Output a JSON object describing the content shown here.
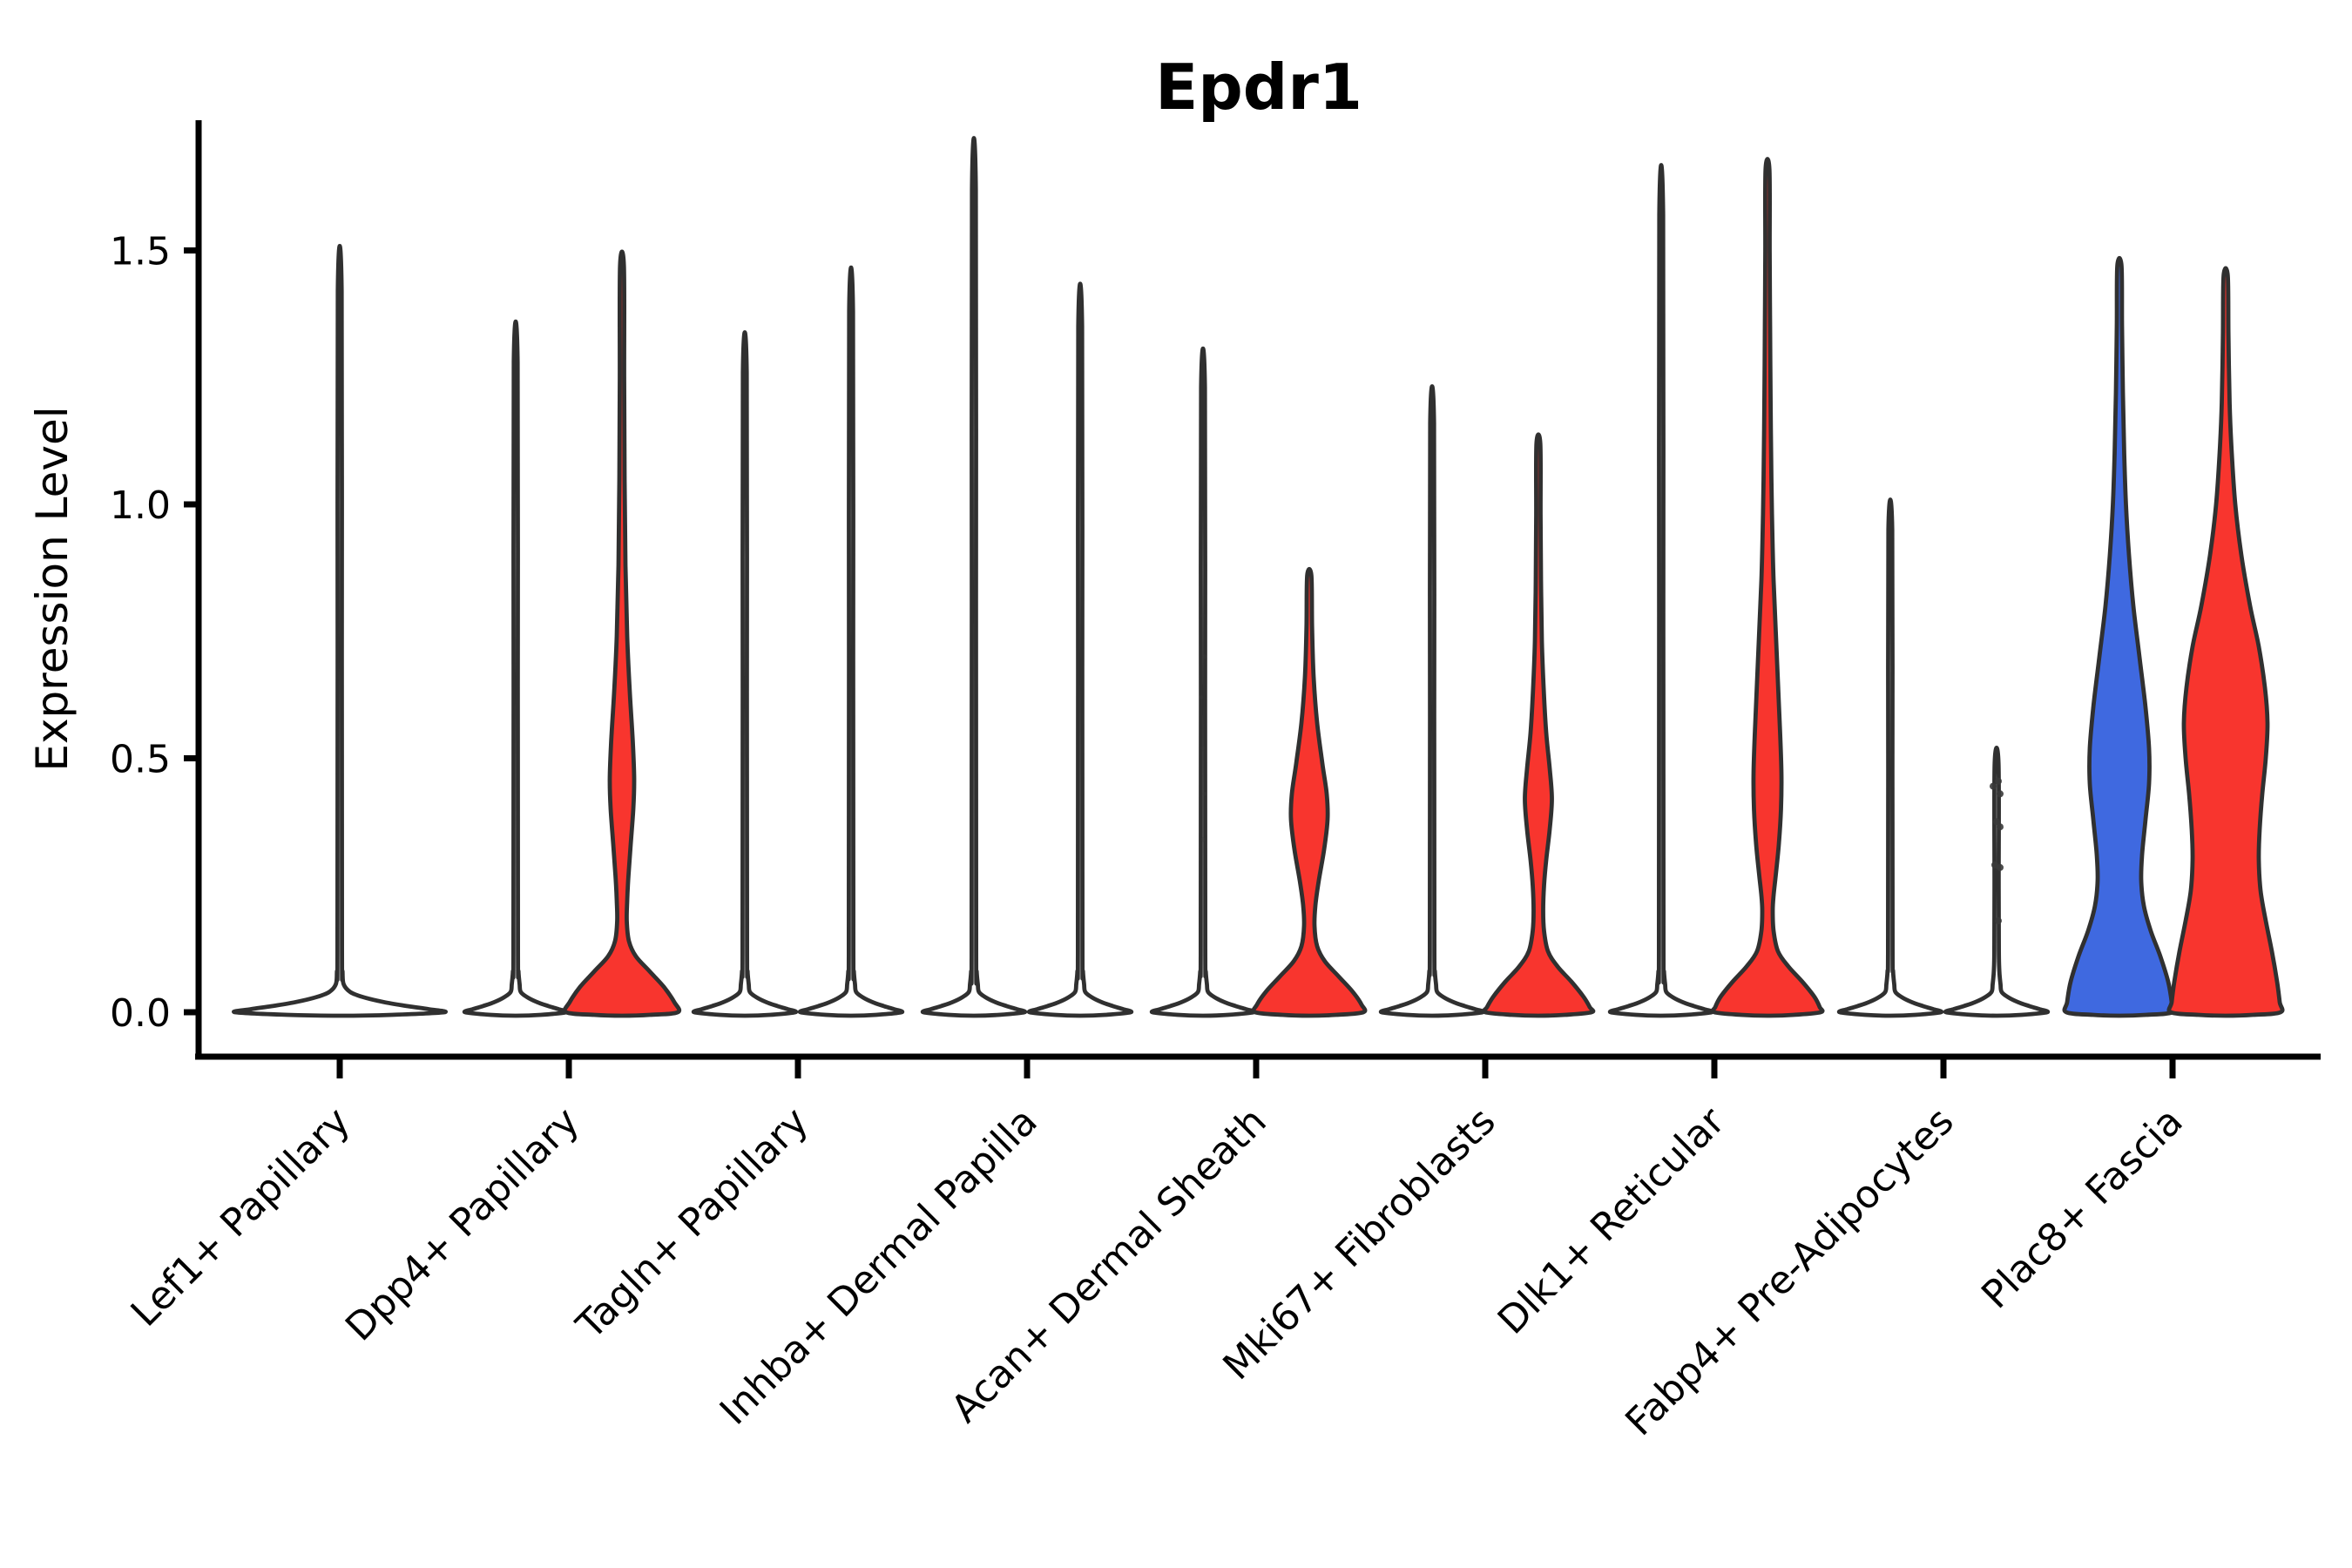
{
  "title": "Epdr1",
  "y_axis": {
    "label": "Expression Level",
    "tick_labels": [
      "0.0",
      "0.5",
      "1.0",
      "1.5"
    ],
    "tick_values": [
      0.0,
      0.5,
      1.0,
      1.5
    ]
  },
  "x_axis": {
    "categories": [
      "Lef1+ Papillary",
      "Dpp4+ Papillary",
      "Tagln+ Papillary",
      "Inhba+ Dermal Papilla",
      "Acan+ Dermal Sheath",
      "Mki67+ Fibroblasts",
      "Dlk1+ Reticular",
      "Fabp4+ Pre-Adipocytes",
      "Plac8+ Fascia"
    ],
    "label_rotation_deg": 45
  },
  "colors": {
    "red": "#f8352e",
    "blue": "#3f69e0",
    "white": "#ffffff",
    "outline": "#303030",
    "axis": "#000000",
    "dot": "#3a3a3a"
  },
  "chart_data": {
    "type": "violin",
    "title": "Epdr1",
    "ylabel": "Expression Level",
    "ylim": [
      0,
      1.75
    ],
    "yticks": [
      0.0,
      0.5,
      1.0,
      1.5
    ],
    "grid": false,
    "legend": "none",
    "categories": [
      "Lef1+ Papillary",
      "Dpp4+ Papillary",
      "Tagln+ Papillary",
      "Inhba+ Dermal Papilla",
      "Acan+ Dermal Sheath",
      "Mki67+ Fibroblasts",
      "Dlk1+ Reticular",
      "Fabp4+ Pre-Adipocytes",
      "Plac8+ Fascia"
    ],
    "groups": [
      {
        "id": "blue",
        "color": "#3f69e0",
        "side": "left"
      },
      {
        "id": "red",
        "color": "#f8352e",
        "side": "right"
      }
    ],
    "violins": [
      {
        "category": "Lef1+ Papillary",
        "cat_index": 0,
        "group": "single",
        "offset": 0,
        "max_expression": 1.42,
        "shape": "flat",
        "base_halfwidth": 120,
        "fill": "white"
      },
      {
        "category": "Dpp4+ Papillary",
        "cat_index": 1,
        "group": "blue",
        "offset": -61,
        "max_expression": 1.28,
        "shape": "flat",
        "base_halfwidth": 58,
        "fill": "white"
      },
      {
        "category": "Dpp4+ Papillary",
        "cat_index": 1,
        "group": "red",
        "offset": 61,
        "max_expression": 1.47,
        "shape": "profile",
        "fill": "red",
        "profile": [
          [
            1.47,
            2.2
          ],
          [
            1.25,
            2.5
          ],
          [
            1.05,
            3
          ],
          [
            0.88,
            4
          ],
          [
            0.74,
            6
          ],
          [
            0.63,
            9
          ],
          [
            0.53,
            12.5
          ],
          [
            0.46,
            14
          ],
          [
            0.4,
            13
          ],
          [
            0.33,
            10
          ],
          [
            0.27,
            7.5
          ],
          [
            0.22,
            6
          ],
          [
            0.18,
            5.5
          ],
          [
            0.14,
            8
          ],
          [
            0.11,
            16
          ],
          [
            0.08,
            32
          ],
          [
            0.05,
            48
          ],
          [
            0.02,
            60
          ],
          [
            0,
            64
          ]
        ]
      },
      {
        "category": "Tagln+ Papillary",
        "cat_index": 2,
        "group": "blue",
        "offset": -61,
        "max_expression": 1.26,
        "shape": "flat",
        "base_halfwidth": 58,
        "fill": "white"
      },
      {
        "category": "Tagln+ Papillary",
        "cat_index": 2,
        "group": "red",
        "offset": 61,
        "max_expression": 1.38,
        "shape": "flat",
        "base_halfwidth": 58,
        "fill": "white"
      },
      {
        "category": "Inhba+ Dermal Papilla",
        "cat_index": 3,
        "group": "blue",
        "offset": -61,
        "max_expression": 1.62,
        "shape": "flat",
        "base_halfwidth": 58,
        "fill": "white"
      },
      {
        "category": "Inhba+ Dermal Papilla",
        "cat_index": 3,
        "group": "red",
        "offset": 61,
        "max_expression": 1.35,
        "shape": "flat",
        "base_halfwidth": 58,
        "fill": "white"
      },
      {
        "category": "Acan+ Dermal Sheath",
        "cat_index": 4,
        "group": "blue",
        "offset": -61,
        "max_expression": 1.23,
        "shape": "flat",
        "base_halfwidth": 58,
        "fill": "white",
        "dots": {
          "points": [
            [
              0.78,
              0
            ],
            [
              0.7,
              1
            ],
            [
              0.62,
              -1
            ],
            [
              0.52,
              0
            ],
            [
              0.43,
              1
            ],
            [
              0.34,
              0
            ]
          ],
          "faint": true
        }
      },
      {
        "category": "Acan+ Dermal Sheath",
        "cat_index": 4,
        "group": "red",
        "offset": 61,
        "max_expression": 0.86,
        "shape": "profile",
        "fill": "red",
        "profile": [
          [
            0.86,
            2.4
          ],
          [
            0.76,
            3.2
          ],
          [
            0.66,
            5
          ],
          [
            0.57,
            9
          ],
          [
            0.49,
            15
          ],
          [
            0.43,
            20
          ],
          [
            0.38,
            21
          ],
          [
            0.32,
            17
          ],
          [
            0.26,
            11
          ],
          [
            0.21,
            7
          ],
          [
            0.17,
            6
          ],
          [
            0.13,
            9
          ],
          [
            0.1,
            18
          ],
          [
            0.07,
            34
          ],
          [
            0.04,
            50
          ],
          [
            0.015,
            60
          ],
          [
            0,
            62
          ]
        ]
      },
      {
        "category": "Mki67+ Fibroblasts",
        "cat_index": 5,
        "group": "blue",
        "offset": -61,
        "max_expression": 1.16,
        "shape": "flat",
        "base_halfwidth": 58,
        "fill": "white"
      },
      {
        "category": "Mki67+ Fibroblasts",
        "cat_index": 5,
        "group": "red",
        "offset": 61,
        "max_expression": 1.12,
        "shape": "profile",
        "fill": "red",
        "profile": [
          [
            1.12,
            2.2
          ],
          [
            0.98,
            2.5
          ],
          [
            0.85,
            3
          ],
          [
            0.73,
            4
          ],
          [
            0.64,
            6
          ],
          [
            0.55,
            9
          ],
          [
            0.48,
            13
          ],
          [
            0.42,
            15.5
          ],
          [
            0.36,
            13
          ],
          [
            0.3,
            9
          ],
          [
            0.25,
            6.5
          ],
          [
            0.2,
            5.5
          ],
          [
            0.16,
            6.5
          ],
          [
            0.12,
            11
          ],
          [
            0.09,
            22
          ],
          [
            0.06,
            38
          ],
          [
            0.03,
            52
          ],
          [
            0.01,
            59
          ],
          [
            0,
            61
          ]
        ]
      },
      {
        "category": "Dlk1+ Reticular",
        "cat_index": 6,
        "group": "blue",
        "offset": -61,
        "max_expression": 1.57,
        "shape": "flat",
        "base_halfwidth": 58,
        "fill": "white"
      },
      {
        "category": "Dlk1+ Reticular",
        "cat_index": 6,
        "group": "red",
        "offset": 61,
        "max_expression": 1.66,
        "shape": "profile",
        "fill": "red",
        "profile": [
          [
            1.66,
            2.2
          ],
          [
            1.5,
            2.5
          ],
          [
            1.35,
            3
          ],
          [
            1.2,
            3.6
          ],
          [
            1.05,
            4.5
          ],
          [
            0.95,
            5.5
          ],
          [
            0.85,
            7
          ],
          [
            0.75,
            9.5
          ],
          [
            0.65,
            12
          ],
          [
            0.55,
            14.5
          ],
          [
            0.47,
            16
          ],
          [
            0.4,
            15.5
          ],
          [
            0.33,
            13
          ],
          [
            0.27,
            9.5
          ],
          [
            0.23,
            7
          ],
          [
            0.2,
            6
          ],
          [
            0.16,
            7
          ],
          [
            0.12,
            12
          ],
          [
            0.09,
            24
          ],
          [
            0.06,
            40
          ],
          [
            0.03,
            54
          ],
          [
            0.01,
            60
          ],
          [
            0,
            61
          ]
        ]
      },
      {
        "category": "Fabp4+ Pre-Adipocytes",
        "cat_index": 7,
        "group": "blue",
        "offset": -61,
        "max_expression": 0.95,
        "shape": "flat",
        "base_halfwidth": 58,
        "fill": "white"
      },
      {
        "category": "Fabp4+ Pre-Adipocytes",
        "cat_index": 7,
        "group": "red",
        "offset": 61,
        "max_expression": 0.49,
        "shape": "flat",
        "base_halfwidth": 58,
        "fill": "white",
        "dots": {
          "points": [
            [
              0.455,
              1
            ],
            [
              0.445,
              -2
            ],
            [
              0.43,
              2
            ],
            [
              0.375,
              0
            ],
            [
              0.365,
              2
            ],
            [
              0.29,
              -1
            ],
            [
              0.285,
              2
            ],
            [
              0.18,
              1
            ]
          ],
          "faint": false
        }
      },
      {
        "category": "Plac8+ Fascia",
        "cat_index": 8,
        "group": "blue",
        "offset": -61,
        "max_expression": 1.47,
        "shape": "profile",
        "fill": "blue",
        "profile": [
          [
            1.47,
            2.4
          ],
          [
            1.35,
            3
          ],
          [
            1.22,
            4
          ],
          [
            1.1,
            5.5
          ],
          [
            1.0,
            7.5
          ],
          [
            0.9,
            11
          ],
          [
            0.8,
            16
          ],
          [
            0.7,
            23
          ],
          [
            0.6,
            30
          ],
          [
            0.52,
            34
          ],
          [
            0.45,
            34
          ],
          [
            0.38,
            30
          ],
          [
            0.31,
            26
          ],
          [
            0.26,
            25
          ],
          [
            0.21,
            28
          ],
          [
            0.16,
            36
          ],
          [
            0.11,
            47
          ],
          [
            0.06,
            56
          ],
          [
            0.02,
            60
          ],
          [
            0,
            61
          ]
        ]
      },
      {
        "category": "Plac8+ Fascia",
        "cat_index": 8,
        "group": "red",
        "offset": 61,
        "max_expression": 1.45,
        "shape": "profile",
        "fill": "red",
        "profile": [
          [
            1.45,
            2.4
          ],
          [
            1.33,
            3.2
          ],
          [
            1.2,
            4.5
          ],
          [
            1.1,
            7
          ],
          [
            1.0,
            11
          ],
          [
            0.9,
            18
          ],
          [
            0.8,
            28
          ],
          [
            0.72,
            38
          ],
          [
            0.64,
            45
          ],
          [
            0.57,
            48
          ],
          [
            0.5,
            46
          ],
          [
            0.43,
            42
          ],
          [
            0.36,
            39
          ],
          [
            0.3,
            38
          ],
          [
            0.24,
            40
          ],
          [
            0.18,
            46
          ],
          [
            0.12,
            53
          ],
          [
            0.06,
            59
          ],
          [
            0.02,
            62
          ],
          [
            0,
            63
          ]
        ]
      }
    ]
  }
}
